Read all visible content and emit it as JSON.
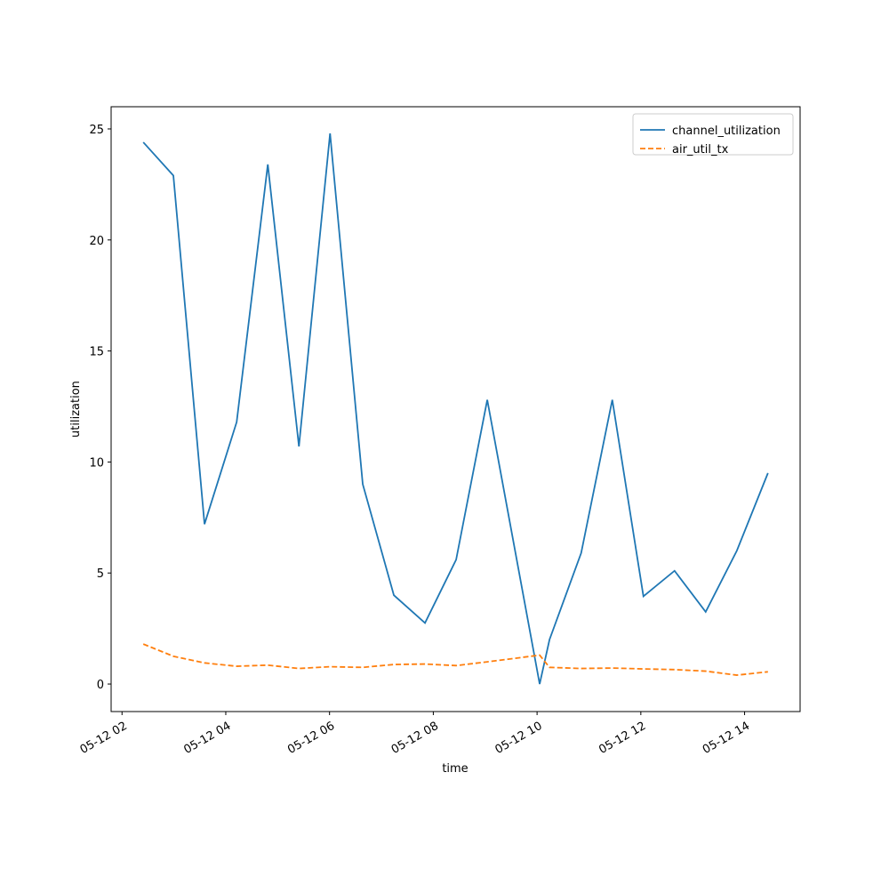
{
  "chart_data": {
    "type": "line",
    "xlabel": "time",
    "ylabel": "utilization",
    "x": [
      2.41,
      2.99,
      3.59,
      4.21,
      4.81,
      5.41,
      6.01,
      6.64,
      7.24,
      7.84,
      8.44,
      9.04,
      10.05,
      10.24,
      10.85,
      11.45,
      12.05,
      12.65,
      13.25,
      13.85,
      14.45
    ],
    "series": [
      {
        "name": "channel_utilization",
        "color": "#1f77b4",
        "dash": false,
        "values": [
          24.4,
          22.9,
          7.2,
          11.8,
          23.4,
          10.7,
          24.8,
          9.0,
          4.0,
          2.75,
          5.6,
          12.8,
          0.0,
          2.0,
          5.9,
          12.8,
          3.95,
          5.1,
          3.25,
          6.0,
          9.5
        ]
      },
      {
        "name": "air_util_tx",
        "color": "#ff7f0e",
        "dash": true,
        "values": [
          1.8,
          1.25,
          0.95,
          0.8,
          0.85,
          0.7,
          0.78,
          0.75,
          0.88,
          0.9,
          0.83,
          1.0,
          1.3,
          0.75,
          0.7,
          0.72,
          0.68,
          0.65,
          0.58,
          0.4,
          0.55
        ]
      }
    ],
    "xlim": [
      1.79,
      15.07
    ],
    "xticks": [
      {
        "value": 2,
        "label": "05-12 02"
      },
      {
        "value": 4,
        "label": "05-12 04"
      },
      {
        "value": 6,
        "label": "05-12 06"
      },
      {
        "value": 8,
        "label": "05-12 08"
      },
      {
        "value": 10,
        "label": "05-12 10"
      },
      {
        "value": 12,
        "label": "05-12 12"
      },
      {
        "value": 14,
        "label": "05-12 14"
      }
    ],
    "ylim": [
      -1.24,
      26.0
    ],
    "yticks": [
      0,
      5,
      10,
      15,
      20,
      25
    ],
    "grid": false,
    "legend": "upper right"
  }
}
